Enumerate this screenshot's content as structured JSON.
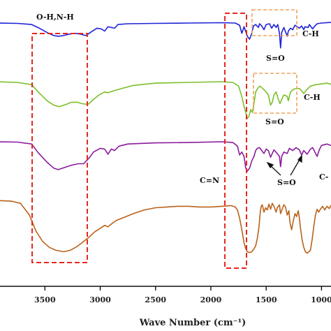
{
  "chart_data": {
    "type": "line",
    "title": "",
    "xlabel": "Wave Number (cm⁻¹)",
    "ylabel": "",
    "xlim": [
      3950,
      750
    ],
    "x_reversed": true,
    "x_ticks": [
      "3500",
      "3000",
      "2500",
      "2000",
      "1500",
      "1000"
    ],
    "x_tick_values": [
      3500,
      3000,
      2500,
      2000,
      1500,
      1000
    ],
    "series": [
      {
        "color": "#1f22d6",
        "points": [
          [
            3950,
            0
          ],
          [
            3750,
            -0.5
          ],
          [
            3620,
            -2
          ],
          [
            3550,
            -7
          ],
          [
            3480,
            -13
          ],
          [
            3420,
            -17
          ],
          [
            3380,
            -18
          ],
          [
            3330,
            -17
          ],
          [
            3280,
            -15
          ],
          [
            3230,
            -14
          ],
          [
            3180,
            -15
          ],
          [
            3130,
            -17
          ],
          [
            3080,
            -12
          ],
          [
            3030,
            -7
          ],
          [
            2990,
            -8
          ],
          [
            2960,
            -11
          ],
          [
            2930,
            -5
          ],
          [
            2870,
            -7
          ],
          [
            2840,
            -2
          ],
          [
            2750,
            -1
          ],
          [
            2500,
            -0.5
          ],
          [
            2200,
            0
          ],
          [
            1900,
            0.5
          ],
          [
            1780,
            0
          ],
          [
            1740,
            -3
          ],
          [
            1720,
            -14
          ],
          [
            1700,
            -5
          ],
          [
            1670,
            -18
          ],
          [
            1650,
            -22
          ],
          [
            1630,
            -14
          ],
          [
            1615,
            -4
          ],
          [
            1595,
            -2
          ],
          [
            1570,
            -6
          ],
          [
            1560,
            -1
          ],
          [
            1540,
            -4
          ],
          [
            1520,
            -9
          ],
          [
            1500,
            -2
          ],
          [
            1470,
            -1
          ],
          [
            1450,
            -7
          ],
          [
            1430,
            -2
          ],
          [
            1410,
            -6
          ],
          [
            1395,
            -2
          ],
          [
            1380,
            -14
          ],
          [
            1370,
            -34
          ],
          [
            1360,
            -13
          ],
          [
            1340,
            -6
          ],
          [
            1310,
            -18
          ],
          [
            1300,
            -11
          ],
          [
            1280,
            -7
          ],
          [
            1260,
            -9
          ],
          [
            1240,
            -3
          ],
          [
            1200,
            -7
          ],
          [
            1180,
            -4
          ],
          [
            1160,
            -9
          ],
          [
            1150,
            -5
          ],
          [
            1120,
            -6
          ],
          [
            1110,
            -2
          ],
          [
            1080,
            -8
          ],
          [
            1060,
            -4
          ],
          [
            1040,
            -1
          ],
          [
            1000,
            0
          ],
          [
            900,
            1
          ],
          [
            800,
            1
          ],
          [
            750,
            1
          ]
        ]
      },
      {
        "color": "#7cbf2a",
        "points": [
          [
            3950,
            0
          ],
          [
            3750,
            -1
          ],
          [
            3620,
            -4
          ],
          [
            3560,
            -14
          ],
          [
            3480,
            -26
          ],
          [
            3420,
            -32
          ],
          [
            3370,
            -34
          ],
          [
            3310,
            -31
          ],
          [
            3260,
            -28
          ],
          [
            3210,
            -28
          ],
          [
            3160,
            -30
          ],
          [
            3110,
            -31
          ],
          [
            3060,
            -24
          ],
          [
            3010,
            -18
          ],
          [
            2960,
            -14
          ],
          [
            2930,
            -15
          ],
          [
            2870,
            -12
          ],
          [
            2800,
            -9
          ],
          [
            2700,
            -5
          ],
          [
            2500,
            -2
          ],
          [
            2200,
            -1
          ],
          [
            1900,
            0
          ],
          [
            1800,
            -1
          ],
          [
            1750,
            -6
          ],
          [
            1720,
            -20
          ],
          [
            1700,
            -34
          ],
          [
            1685,
            -42
          ],
          [
            1670,
            -50
          ],
          [
            1655,
            -47
          ],
          [
            1640,
            -38
          ],
          [
            1625,
            -42
          ],
          [
            1610,
            -30
          ],
          [
            1595,
            -14
          ],
          [
            1580,
            -10
          ],
          [
            1560,
            -6
          ],
          [
            1540,
            -8
          ],
          [
            1520,
            -11
          ],
          [
            1500,
            -14
          ],
          [
            1480,
            -18
          ],
          [
            1460,
            -32
          ],
          [
            1445,
            -28
          ],
          [
            1430,
            -18
          ],
          [
            1410,
            -14
          ],
          [
            1390,
            -24
          ],
          [
            1375,
            -30
          ],
          [
            1360,
            -24
          ],
          [
            1340,
            -18
          ],
          [
            1310,
            -20
          ],
          [
            1300,
            -26
          ],
          [
            1280,
            -14
          ],
          [
            1250,
            -10
          ],
          [
            1200,
            -9
          ],
          [
            1160,
            -16
          ],
          [
            1140,
            -12
          ],
          [
            1100,
            -6
          ],
          [
            1050,
            -4
          ],
          [
            1000,
            -3
          ],
          [
            950,
            -2
          ],
          [
            900,
            -4
          ],
          [
            850,
            -2
          ],
          [
            800,
            -1
          ],
          [
            750,
            0
          ]
        ]
      },
      {
        "color": "#8a1a9c",
        "points": [
          [
            3950,
            0
          ],
          [
            3750,
            -0.5
          ],
          [
            3620,
            -3
          ],
          [
            3560,
            -15
          ],
          [
            3480,
            -28
          ],
          [
            3420,
            -36
          ],
          [
            3380,
            -38
          ],
          [
            3320,
            -35
          ],
          [
            3260,
            -32
          ],
          [
            3200,
            -30
          ],
          [
            3150,
            -30
          ],
          [
            3100,
            -22
          ],
          [
            3060,
            -14
          ],
          [
            3000,
            -9
          ],
          [
            2960,
            -10
          ],
          [
            2930,
            -17
          ],
          [
            2900,
            -10
          ],
          [
            2870,
            -12
          ],
          [
            2830,
            -6
          ],
          [
            2750,
            -3
          ],
          [
            2500,
            -1.5
          ],
          [
            2200,
            -1
          ],
          [
            1900,
            0
          ],
          [
            1800,
            -1
          ],
          [
            1760,
            -6
          ],
          [
            1740,
            -18
          ],
          [
            1720,
            -14
          ],
          [
            1700,
            -20
          ],
          [
            1685,
            -36
          ],
          [
            1670,
            -40
          ],
          [
            1650,
            -36
          ],
          [
            1630,
            -26
          ],
          [
            1610,
            -20
          ],
          [
            1595,
            -12
          ],
          [
            1580,
            -9
          ],
          [
            1560,
            -8
          ],
          [
            1540,
            -12
          ],
          [
            1520,
            -16
          ],
          [
            1500,
            -10
          ],
          [
            1480,
            -12
          ],
          [
            1460,
            -21
          ],
          [
            1445,
            -16
          ],
          [
            1430,
            -11
          ],
          [
            1400,
            -16
          ],
          [
            1380,
            -20
          ],
          [
            1370,
            -34
          ],
          [
            1360,
            -20
          ],
          [
            1340,
            -14
          ],
          [
            1310,
            -16
          ],
          [
            1290,
            -9
          ],
          [
            1260,
            -12
          ],
          [
            1230,
            -8
          ],
          [
            1200,
            -11
          ],
          [
            1180,
            -18
          ],
          [
            1160,
            -12
          ],
          [
            1130,
            -17
          ],
          [
            1100,
            -10
          ],
          [
            1080,
            -8
          ],
          [
            1060,
            -14
          ],
          [
            1040,
            -20
          ],
          [
            1020,
            -11
          ],
          [
            1000,
            -5
          ],
          [
            950,
            -3
          ],
          [
            900,
            -6
          ],
          [
            850,
            -4
          ],
          [
            800,
            -3
          ],
          [
            750,
            -2
          ]
        ]
      },
      {
        "color": "#b8621a",
        "points": [
          [
            3950,
            0
          ],
          [
            3800,
            -1
          ],
          [
            3720,
            -4
          ],
          [
            3640,
            -20
          ],
          [
            3580,
            -42
          ],
          [
            3520,
            -56
          ],
          [
            3460,
            -64
          ],
          [
            3400,
            -68
          ],
          [
            3330,
            -70
          ],
          [
            3270,
            -68
          ],
          [
            3210,
            -63
          ],
          [
            3150,
            -56
          ],
          [
            3100,
            -50
          ],
          [
            3050,
            -43
          ],
          [
            3000,
            -38
          ],
          [
            2960,
            -34
          ],
          [
            2930,
            -36
          ],
          [
            2880,
            -30
          ],
          [
            2850,
            -27
          ],
          [
            2800,
            -24
          ],
          [
            2700,
            -18
          ],
          [
            2600,
            -13
          ],
          [
            2500,
            -10
          ],
          [
            2400,
            -9
          ],
          [
            2300,
            -8
          ],
          [
            2200,
            -8
          ],
          [
            2100,
            -9
          ],
          [
            2000,
            -9
          ],
          [
            1900,
            -8
          ],
          [
            1820,
            -7
          ],
          [
            1780,
            -9
          ],
          [
            1760,
            -13
          ],
          [
            1740,
            -24
          ],
          [
            1720,
            -40
          ],
          [
            1700,
            -58
          ],
          [
            1685,
            -66
          ],
          [
            1670,
            -70
          ],
          [
            1650,
            -71
          ],
          [
            1630,
            -70
          ],
          [
            1610,
            -66
          ],
          [
            1595,
            -62
          ],
          [
            1580,
            -52
          ],
          [
            1565,
            -36
          ],
          [
            1555,
            -18
          ],
          [
            1545,
            -8
          ],
          [
            1535,
            -6
          ],
          [
            1520,
            -16
          ],
          [
            1505,
            -10
          ],
          [
            1490,
            -13
          ],
          [
            1475,
            -5
          ],
          [
            1460,
            -12
          ],
          [
            1445,
            -4
          ],
          [
            1430,
            -8
          ],
          [
            1410,
            -16
          ],
          [
            1400,
            -10
          ],
          [
            1380,
            -6
          ],
          [
            1370,
            -18
          ],
          [
            1355,
            -12
          ],
          [
            1340,
            -6
          ],
          [
            1325,
            -9
          ],
          [
            1310,
            -20
          ],
          [
            1295,
            -14
          ],
          [
            1285,
            -30
          ],
          [
            1270,
            -40
          ],
          [
            1255,
            -28
          ],
          [
            1240,
            -18
          ],
          [
            1225,
            -22
          ],
          [
            1210,
            -14
          ],
          [
            1200,
            -24
          ],
          [
            1190,
            -38
          ],
          [
            1175,
            -54
          ],
          [
            1160,
            -64
          ],
          [
            1145,
            -70
          ],
          [
            1130,
            -72
          ],
          [
            1115,
            -70
          ],
          [
            1100,
            -68
          ],
          [
            1085,
            -54
          ],
          [
            1070,
            -36
          ],
          [
            1055,
            -20
          ],
          [
            1040,
            -12
          ],
          [
            1025,
            -16
          ],
          [
            1010,
            -12
          ],
          [
            990,
            -8
          ],
          [
            970,
            -13
          ],
          [
            950,
            -8
          ],
          [
            930,
            -11
          ],
          [
            910,
            -6
          ],
          [
            890,
            -9
          ],
          [
            870,
            -14
          ],
          [
            850,
            -12
          ],
          [
            830,
            -20
          ],
          [
            815,
            -24
          ],
          [
            800,
            -18
          ],
          [
            785,
            -12
          ],
          [
            770,
            -16
          ],
          [
            750,
            -10
          ]
        ]
      }
    ],
    "annotations": {
      "oh_nh": "O-H,N-H",
      "ch_1": "C-H",
      "so_1": "S=O",
      "ch_2": "C-H",
      "so_2": "S=O",
      "cn": "C=N",
      "so_3": "S=O",
      "ch_3": "C-"
    },
    "grid": false,
    "legend": "none"
  }
}
